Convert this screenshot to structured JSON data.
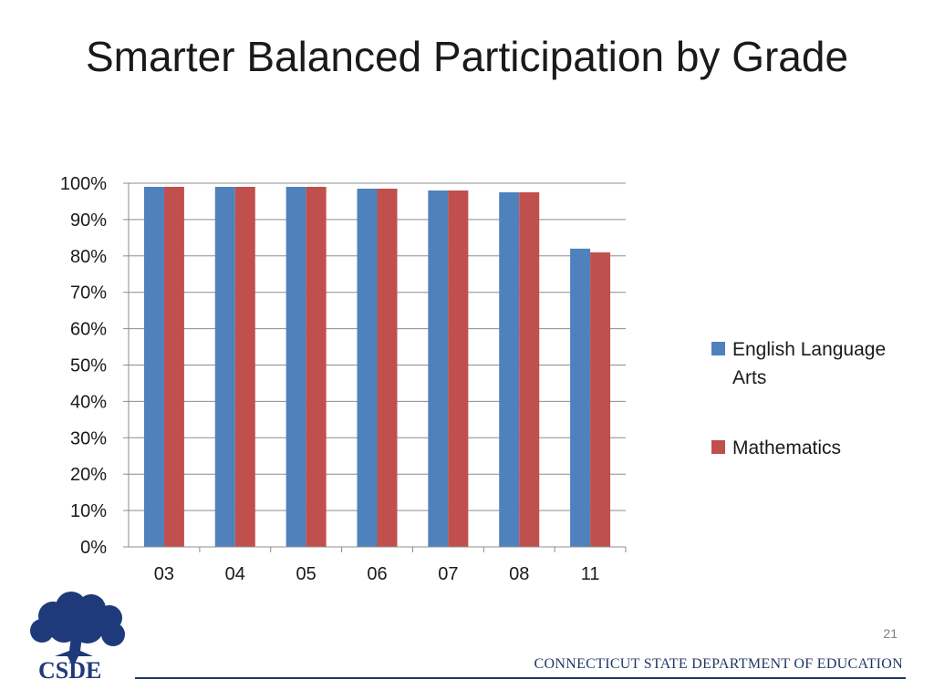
{
  "slide": {
    "title": "Smarter Balanced Participation by Grade",
    "page_number": "21",
    "footer": "CONNECTICUT STATE DEPARTMENT OF EDUCATION",
    "logo_text": "CSDE"
  },
  "colors": {
    "ela": "#4f81bd",
    "math": "#c0504d",
    "footer": "#1f3864",
    "logo": "#1f3a7a"
  },
  "chart_data": {
    "type": "bar",
    "title": "",
    "xlabel": "",
    "ylabel": "",
    "categories": [
      "03",
      "04",
      "05",
      "06",
      "07",
      "08",
      "11"
    ],
    "series": [
      {
        "name": "English Language Arts",
        "values": [
          0.99,
          0.99,
          0.99,
          0.985,
          0.98,
          0.975,
          0.82
        ]
      },
      {
        "name": "Mathematics",
        "values": [
          0.99,
          0.99,
          0.99,
          0.985,
          0.98,
          0.975,
          0.81
        ]
      }
    ],
    "ylim": [
      0,
      1
    ],
    "yticks": [
      "0%",
      "10%",
      "20%",
      "30%",
      "40%",
      "50%",
      "60%",
      "70%",
      "80%",
      "90%",
      "100%"
    ],
    "grid": true,
    "legend": "right"
  }
}
